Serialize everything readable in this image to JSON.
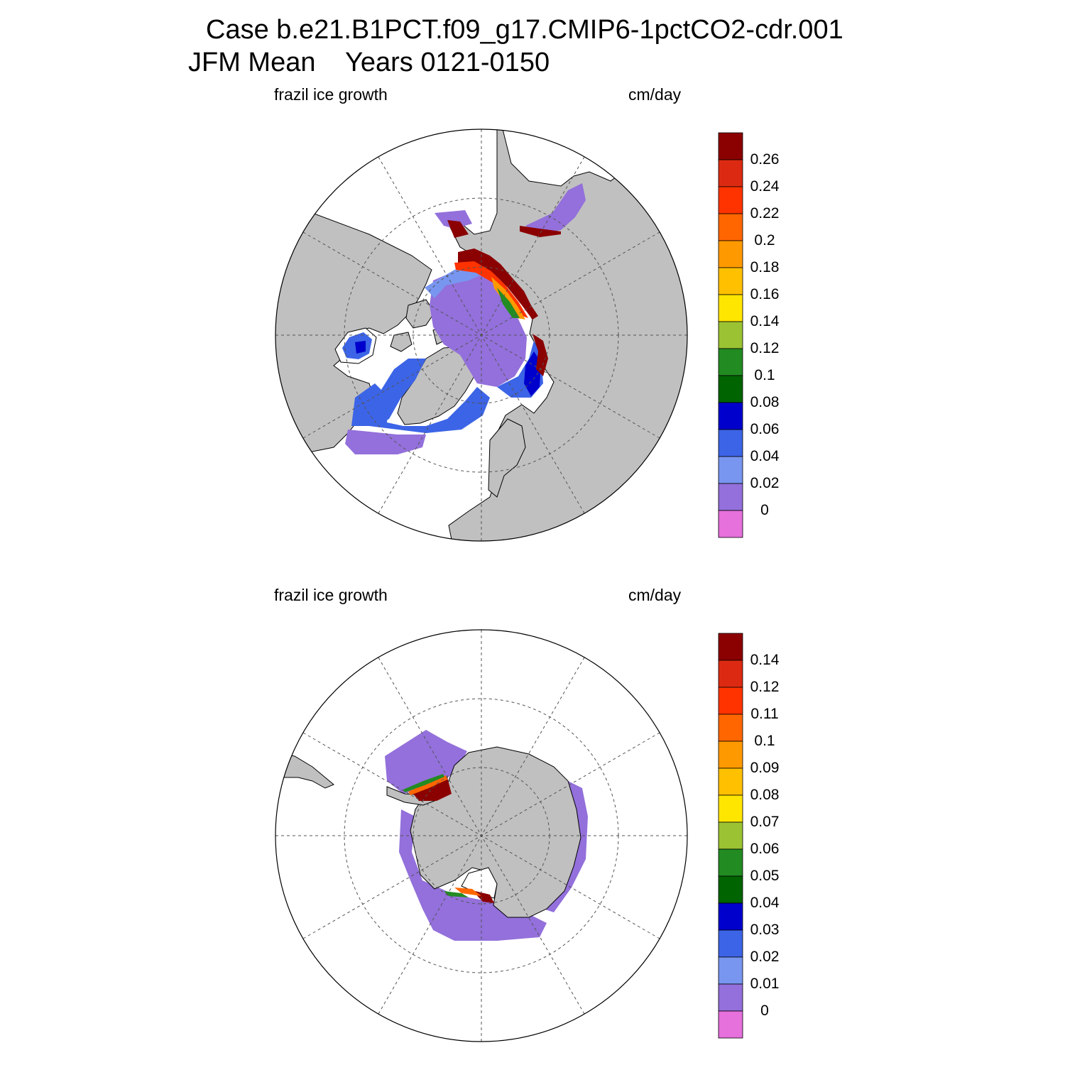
{
  "title": {
    "line1": "Case b.e21.B1PCT.f09_g17.CMIP6-1pctCO2-cdr.001",
    "line2": "JFM Mean    Years 0121-0150"
  },
  "panels": [
    {
      "id": "north",
      "left_label": "frazil ice growth",
      "right_label": "cm/day",
      "colorbar": {
        "labels": [
          "0.26",
          "0.24",
          "0.22",
          "0.2",
          "0.18",
          "0.16",
          "0.14",
          "0.12",
          "0.1",
          "0.08",
          "0.06",
          "0.04",
          "0.02",
          "0"
        ]
      }
    },
    {
      "id": "south",
      "left_label": "frazil ice growth",
      "right_label": "cm/day",
      "colorbar": {
        "labels": [
          "0.14",
          "0.12",
          "0.11",
          "0.1",
          "0.09",
          "0.08",
          "0.07",
          "0.06",
          "0.05",
          "0.04",
          "0.03",
          "0.02",
          "0.01",
          "0"
        ]
      }
    }
  ],
  "colors": {
    "palette_top_to_bottom": [
      "#8b0000",
      "#dc2a12",
      "#ff3300",
      "#ff6600",
      "#ff9900",
      "#ffc000",
      "#ffe600",
      "#9bc232",
      "#228b22",
      "#006400",
      "#0000cd",
      "#3c64e6",
      "#7896f0",
      "#9370db",
      "#e670dc"
    ],
    "land": "#c0c0c0",
    "ocean": "#ffffff"
  }
}
